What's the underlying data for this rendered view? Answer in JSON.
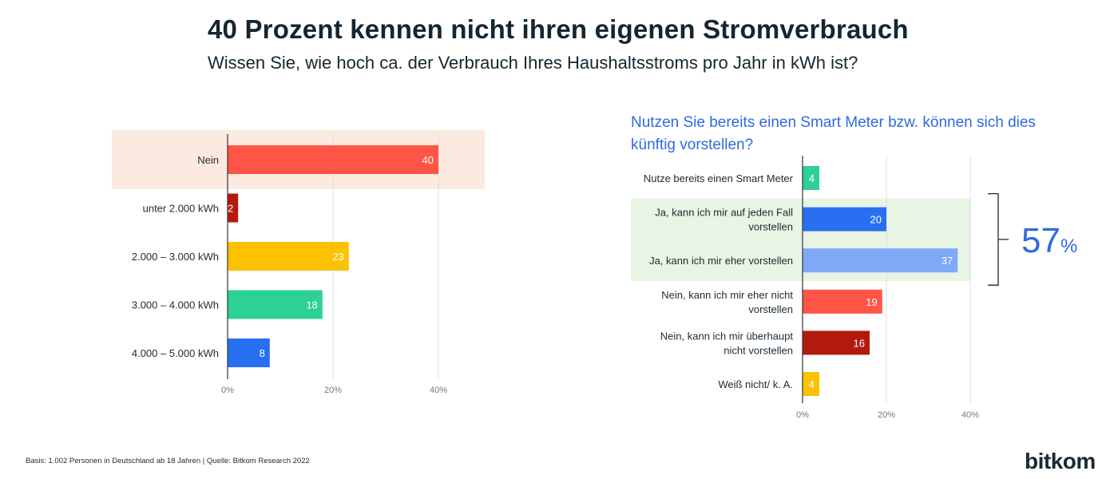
{
  "title": "40 Prozent kennen nicht ihren eigenen Stromverbrauch",
  "subtitle": "Wissen Sie, wie hoch ca. der Verbrauch Ihres Haushaltsstroms pro Jahr in kWh ist?",
  "chart_data": [
    {
      "type": "bar",
      "orientation": "horizontal",
      "title": "",
      "categories": [
        "Nein",
        "unter 2.000 kWh",
        "2.000 – 3.000 kWh",
        "3.000 – 4.000 kWh",
        "4.000 – 5.000 kWh"
      ],
      "values": [
        40,
        2,
        23,
        18,
        8
      ],
      "category_lines": [
        [
          "Nein"
        ],
        [
          "unter 2.000 kWh"
        ],
        [
          "2.000 – 3.000 kWh"
        ],
        [
          "3.000 – 4.000 kWh"
        ],
        [
          "4.000 – 5.000 kWh"
        ]
      ],
      "colors": [
        "#ff5446",
        "#b31a0e",
        "#fcc200",
        "#2dd196",
        "#2970f0"
      ],
      "highlight": {
        "categories": [
          "Nein"
        ],
        "color": "#fce9df"
      },
      "xlim": [
        0,
        40
      ],
      "xticks": [
        "0%",
        "20%",
        "40%"
      ],
      "xtick_values": [
        0,
        20,
        40
      ],
      "grid": true,
      "value_unit": "%"
    },
    {
      "type": "bar",
      "orientation": "horizontal",
      "title": "Nutzen Sie bereits einen Smart Meter bzw. können sich dies künftig vorstellen?",
      "categories": [
        "Nutze bereits einen Smart Meter",
        "Ja, kann ich mir auf jeden Fall vorstellen",
        "Ja, kann ich mir eher vorstellen",
        "Nein, kann ich mir eher nicht vorstellen",
        "Nein, kann ich mir überhaupt nicht vorstellen",
        "Weiß nicht/ k. A."
      ],
      "values": [
        4,
        20,
        37,
        19,
        16,
        4
      ],
      "category_lines": [
        [
          "Nutze bereits einen Smart Meter"
        ],
        [
          "Ja, kann ich mir auf jeden Fall",
          "vorstellen"
        ],
        [
          "Ja, kann ich mir eher vorstellen"
        ],
        [
          "Nein, kann ich mir eher nicht",
          "vorstellen"
        ],
        [
          "Nein, kann ich mir überhaupt",
          "nicht vorstellen"
        ],
        [
          "Weiß nicht/ k. A."
        ]
      ],
      "colors": [
        "#2dd196",
        "#2970f0",
        "#7ea9f7",
        "#ff5446",
        "#b31a0e",
        "#fcc200"
      ],
      "highlight": {
        "categories": [
          "Ja, kann ich mir auf jeden Fall vorstellen",
          "Ja, kann ich mir eher vorstellen"
        ],
        "color": "#e8f4e4"
      },
      "bracket_total": {
        "value": "57",
        "unit": "%"
      },
      "xlim": [
        0,
        40
      ],
      "xticks": [
        "0%",
        "20%",
        "40%"
      ],
      "xtick_values": [
        0,
        20,
        40
      ],
      "grid": true,
      "value_unit": "%"
    }
  ],
  "footer": "Basis: 1.002 Personen in Deutschland ab 18 Jahren | Quelle: Bitkom Research 2022",
  "logo": "bitkom",
  "colors": {
    "title": "#142630",
    "accent_blue": "#2f6ae0",
    "grid": "#dddddd",
    "axis": "#333333"
  }
}
